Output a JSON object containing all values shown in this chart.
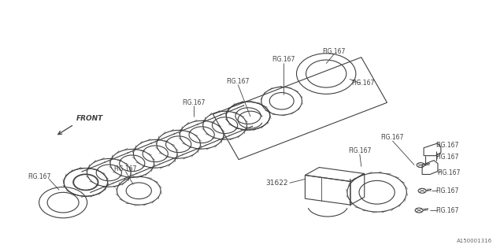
{
  "background_color": "#ffffff",
  "line_color": "#404040",
  "label_color": "#404040",
  "fig_label": "FIG.167",
  "part_number": "31622",
  "front_label": "FRONT",
  "diagram_id": "A150001316",
  "figsize": [
    6.4,
    3.2
  ],
  "dpi": 100
}
